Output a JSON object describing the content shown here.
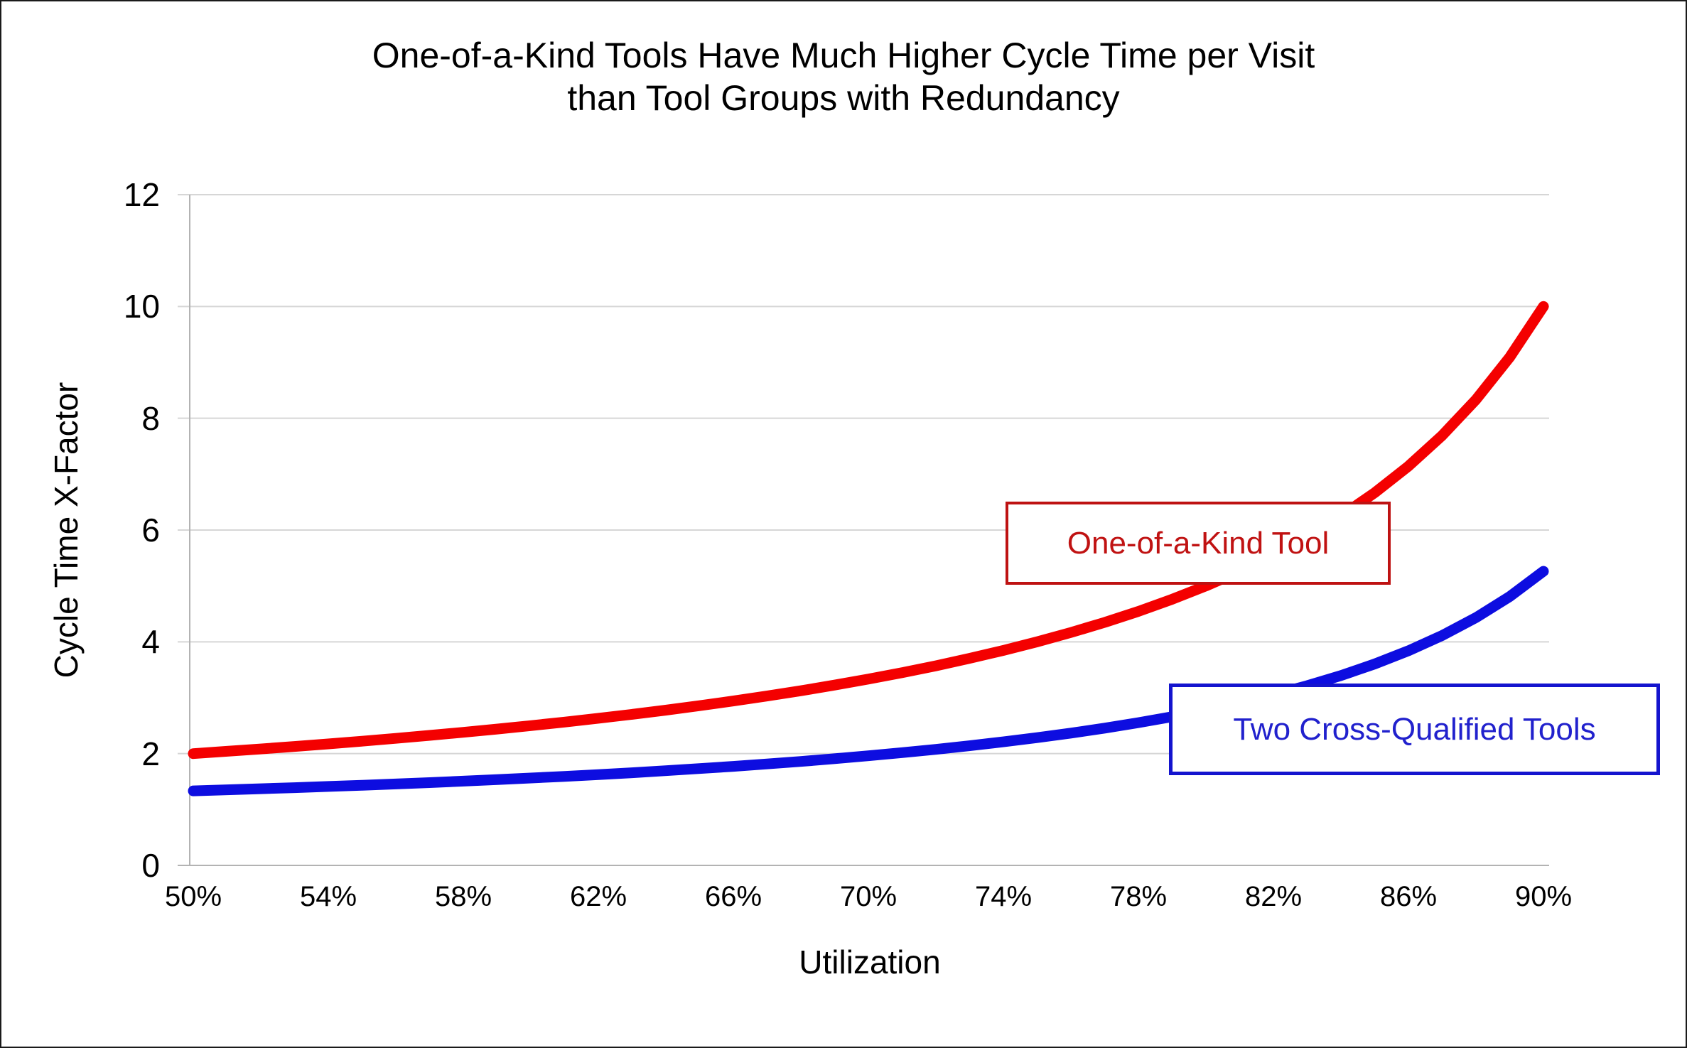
{
  "title": {
    "line1": "One-of-a-Kind Tools Have Much Higher Cycle Time per Visit",
    "line2": "than Tool Groups with Redundancy"
  },
  "colors": {
    "red_curve": "#f40000",
    "blue_curve": "#0d0de0",
    "red_label_border": "#be1212",
    "red_label_text": "#c01212",
    "blue_label_border": "#1414ce",
    "blue_label_text": "#2121cd",
    "gridline": "#d6d6d6",
    "axis_line": "#b3b3b3",
    "text": "#000000",
    "background": "#ffffff"
  },
  "chart_data": {
    "type": "line",
    "title": "One-of-a-Kind Tools Have Much Higher Cycle Time per Visit than Tool Groups with Redundancy",
    "xlabel": "Utilization",
    "ylabel": "Cycle Time X-Factor",
    "xlim": [
      50,
      90
    ],
    "ylim": [
      0,
      12
    ],
    "grid": "horizontal",
    "legend": "boxed-inline-annotations",
    "x_tick_labels": [
      "50%",
      "54%",
      "58%",
      "62%",
      "66%",
      "70%",
      "74%",
      "78%",
      "82%",
      "86%",
      "90%"
    ],
    "x_tick_values": [
      50,
      54,
      58,
      62,
      66,
      70,
      74,
      78,
      82,
      86,
      90
    ],
    "y_tick_labels": [
      "0",
      "2",
      "4",
      "6",
      "8",
      "10",
      "12"
    ],
    "y_tick_values": [
      0,
      2,
      4,
      6,
      8,
      10,
      12
    ],
    "x": [
      50,
      51,
      52,
      53,
      54,
      55,
      56,
      57,
      58,
      59,
      60,
      61,
      62,
      63,
      64,
      65,
      66,
      67,
      68,
      69,
      70,
      71,
      72,
      73,
      74,
      75,
      76,
      77,
      78,
      79,
      80,
      81,
      82,
      83,
      84,
      85,
      86,
      87,
      88,
      89,
      90
    ],
    "series": [
      {
        "name": "One-of-a-Kind Tool",
        "color": "#f40000",
        "values": [
          2.0,
          2.041,
          2.083,
          2.128,
          2.174,
          2.222,
          2.273,
          2.326,
          2.381,
          2.439,
          2.5,
          2.564,
          2.632,
          2.703,
          2.778,
          2.857,
          2.941,
          3.03,
          3.125,
          3.226,
          3.333,
          3.448,
          3.571,
          3.704,
          3.846,
          4.0,
          4.167,
          4.348,
          4.545,
          4.762,
          5.0,
          5.263,
          5.556,
          5.882,
          6.25,
          6.667,
          7.143,
          7.692,
          8.333,
          9.091,
          10.0
        ]
      },
      {
        "name": "Two Cross-Qualified Tools",
        "color": "#0d0de0",
        "values": [
          1.333,
          1.352,
          1.371,
          1.391,
          1.412,
          1.434,
          1.457,
          1.481,
          1.507,
          1.534,
          1.563,
          1.593,
          1.625,
          1.658,
          1.694,
          1.732,
          1.772,
          1.815,
          1.86,
          1.909,
          1.961,
          2.017,
          2.076,
          2.141,
          2.21,
          2.286,
          2.367,
          2.456,
          2.554,
          2.661,
          2.778,
          2.908,
          3.053,
          3.215,
          3.397,
          3.604,
          3.84,
          4.114,
          4.433,
          4.81,
          5.263
        ]
      }
    ]
  }
}
